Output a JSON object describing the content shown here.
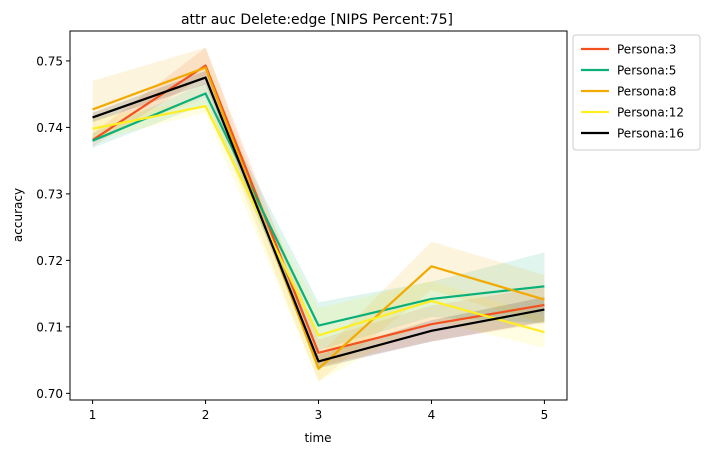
{
  "chart_data": {
    "type": "line",
    "title": "attr auc Delete:edge [NIPS Percent:75]",
    "xlabel": "time",
    "ylabel": "accuracy",
    "xlim": [
      0.8,
      5.2
    ],
    "ylim": [
      0.699,
      0.7545
    ],
    "x_ticks": [
      1,
      2,
      3,
      4,
      5
    ],
    "y_ticks": [
      0.7,
      0.71,
      0.72,
      0.73,
      0.74,
      0.75
    ],
    "y_tick_labels": [
      "0.70",
      "0.71",
      "0.72",
      "0.73",
      "0.74",
      "0.75"
    ],
    "legend_position": "outside-top-right",
    "x": [
      1,
      2,
      3,
      4,
      5
    ],
    "series": [
      {
        "name": "Persona:3",
        "color": "#f4511e",
        "values": [
          0.7381,
          0.7493,
          0.7061,
          0.7104,
          0.7133
        ],
        "lower": [
          0.7371,
          0.7478,
          0.7041,
          0.7078,
          0.7106
        ],
        "upper": [
          0.7391,
          0.752,
          0.7081,
          0.7132,
          0.716
        ]
      },
      {
        "name": "Persona:5",
        "color": "#0ab07a",
        "values": [
          0.738,
          0.7451,
          0.7102,
          0.7142,
          0.7161
        ],
        "lower": [
          0.7369,
          0.7435,
          0.7065,
          0.7115,
          0.7105
        ],
        "upper": [
          0.7391,
          0.7467,
          0.7137,
          0.7168,
          0.7212
        ]
      },
      {
        "name": "Persona:8",
        "color": "#f2a900",
        "values": [
          0.7427,
          0.749,
          0.7037,
          0.7191,
          0.7141
        ],
        "lower": [
          0.7381,
          0.7445,
          0.7018,
          0.7155,
          0.7105
        ],
        "upper": [
          0.747,
          0.752,
          0.7057,
          0.7228,
          0.7178
        ]
      },
      {
        "name": "Persona:12",
        "color": "#ffee22",
        "values": [
          0.7398,
          0.7432,
          0.7087,
          0.7139,
          0.7092
        ],
        "lower": [
          0.738,
          0.7422,
          0.7018,
          0.711,
          0.7068
        ],
        "upper": [
          0.7415,
          0.7442,
          0.7128,
          0.7169,
          0.7115
        ]
      },
      {
        "name": "Persona:16",
        "color": "#000000",
        "values": [
          0.7415,
          0.7475,
          0.7048,
          0.7094,
          0.7126
        ],
        "lower": [
          0.7408,
          0.7465,
          0.7038,
          0.7078,
          0.7108
        ],
        "upper": [
          0.7422,
          0.7485,
          0.7058,
          0.711,
          0.7145
        ]
      }
    ]
  }
}
